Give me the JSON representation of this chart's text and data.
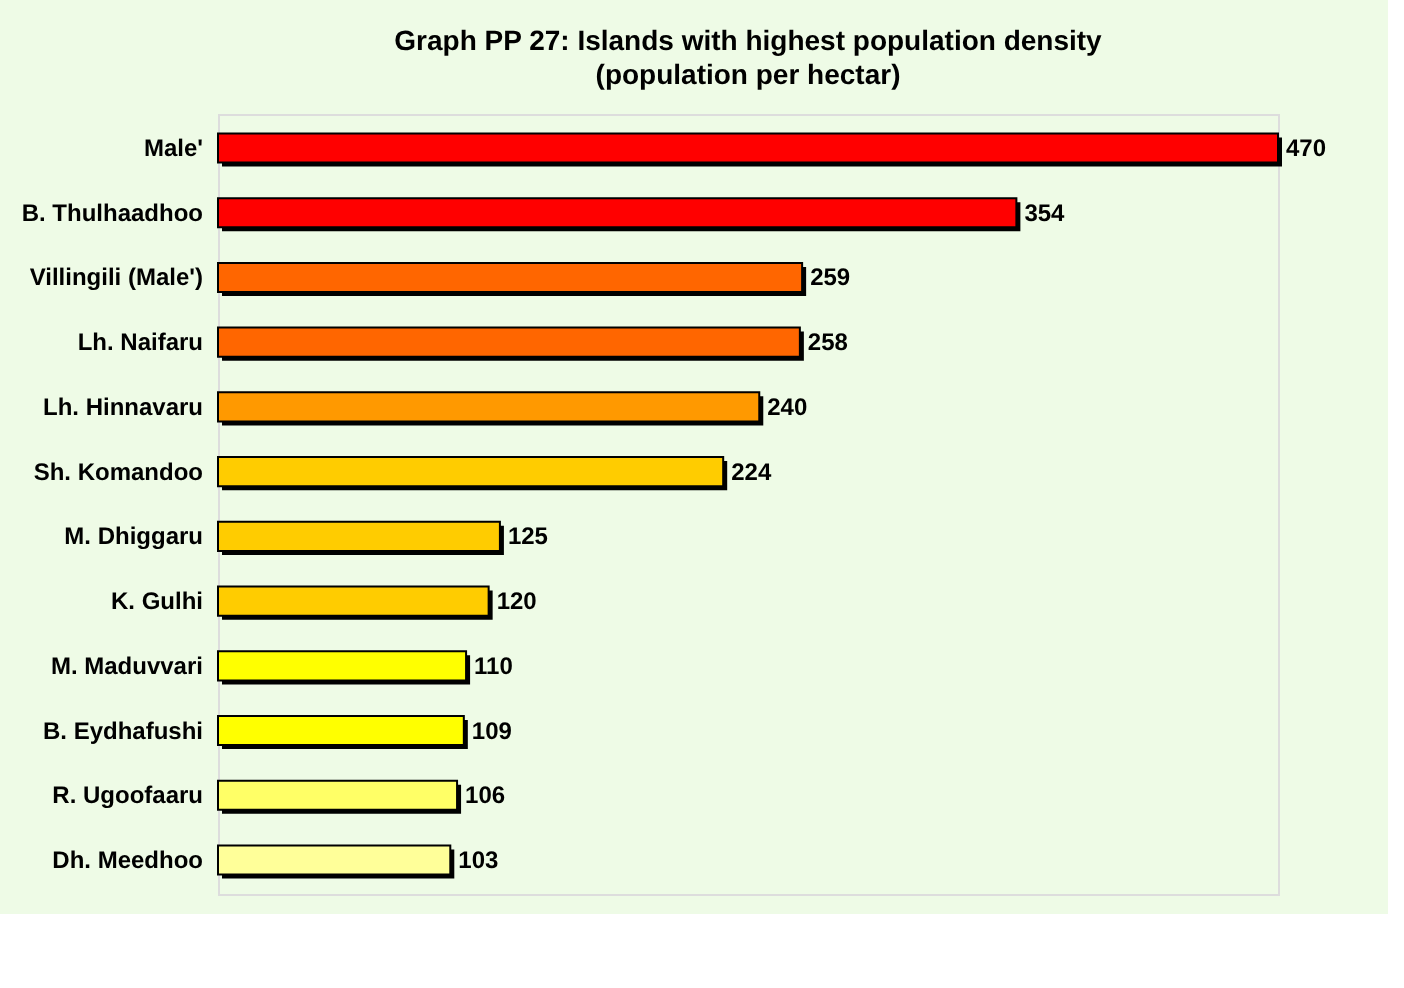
{
  "chart_data": {
    "type": "bar",
    "orientation": "horizontal",
    "title": "Graph PP 27: Islands with highest population density",
    "subtitle": "(population per hectar)",
    "categories": [
      "Male'",
      "B. Thulhaadhoo",
      "Villingili (Male')",
      "Lh. Naifaru",
      "Lh. Hinnavaru",
      "Sh. Komandoo",
      "M. Dhiggaru",
      "K. Gulhi",
      "M. Maduvvari",
      "B. Eydhafushi",
      "R. Ugoofaaru",
      "Dh. Meedhoo"
    ],
    "values": [
      470,
      354,
      259,
      258,
      240,
      224,
      125,
      120,
      110,
      109,
      106,
      103
    ],
    "colors": [
      "#ff0000",
      "#ff0000",
      "#ff6600",
      "#ff6600",
      "#ff9900",
      "#ffcc00",
      "#ffcc00",
      "#ffcc00",
      "#ffff00",
      "#ffff00",
      "#ffff66",
      "#ffff99"
    ],
    "data_labels": true,
    "tick_labels": "y"
  }
}
